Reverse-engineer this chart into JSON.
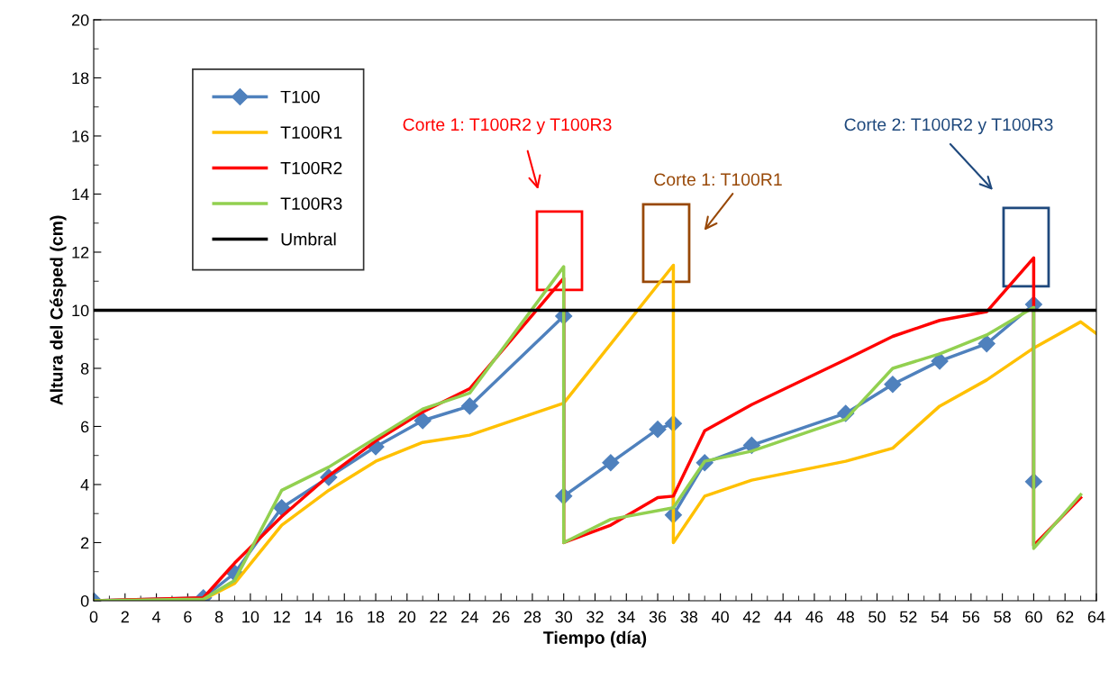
{
  "chart_data": {
    "type": "line",
    "xlabel": "Tiempo (día)",
    "ylabel": "Altura del Césped (cm)",
    "xlim": [
      0,
      64
    ],
    "xticks": [
      0,
      2,
      4,
      6,
      8,
      10,
      12,
      14,
      16,
      18,
      20,
      22,
      24,
      26,
      28,
      30,
      32,
      34,
      36,
      38,
      40,
      42,
      44,
      46,
      48,
      50,
      52,
      54,
      56,
      58,
      60,
      62,
      64
    ],
    "ylim": [
      0,
      20
    ],
    "yticks": [
      0,
      2,
      4,
      6,
      8,
      10,
      12,
      14,
      16,
      18,
      20
    ],
    "grid": false,
    "legend": "top left",
    "series": [
      {
        "name": "T100",
        "color": "#4f81bd",
        "marker": "diamond",
        "x": [
          0,
          7,
          9,
          12,
          15,
          18,
          21,
          24,
          30,
          30,
          33,
          36,
          37,
          37,
          39,
          42,
          48,
          51,
          54,
          57,
          60,
          60
        ],
        "values": [
          0,
          0.1,
          0.95,
          3.2,
          4.25,
          5.3,
          6.2,
          6.7,
          9.8,
          3.6,
          4.75,
          5.9,
          6.1,
          2.95,
          4.75,
          5.35,
          6.45,
          7.45,
          8.25,
          8.85,
          10.2,
          4.1
        ]
      },
      {
        "name": "T100R1",
        "color": "#ffc000",
        "x": [
          0,
          7,
          9,
          12,
          15,
          18,
          21,
          24,
          30,
          37,
          37,
          39,
          42,
          48,
          51,
          54,
          57,
          60,
          63,
          64
        ],
        "values": [
          0,
          0.05,
          0.6,
          2.6,
          3.8,
          4.8,
          5.45,
          5.7,
          6.8,
          11.55,
          2.0,
          3.6,
          4.15,
          4.8,
          5.25,
          6.7,
          7.6,
          8.7,
          9.6,
          9.2
        ]
      },
      {
        "name": "T100R2",
        "color": "#ff0000",
        "x": [
          0,
          7,
          9,
          12,
          15,
          18,
          21,
          24,
          30,
          30,
          33,
          36,
          37,
          39,
          42,
          48,
          51,
          54,
          57,
          60,
          60,
          63
        ],
        "values": [
          0,
          0.1,
          1.3,
          2.9,
          4.3,
          5.5,
          6.5,
          7.3,
          11.1,
          2.0,
          2.6,
          3.55,
          3.6,
          5.85,
          6.75,
          8.3,
          9.1,
          9.65,
          9.95,
          11.8,
          1.9,
          3.55
        ]
      },
      {
        "name": "T100R3",
        "color": "#92d050",
        "x": [
          0,
          7,
          9,
          12,
          15,
          18,
          21,
          24,
          30,
          30,
          33,
          37,
          39,
          42,
          48,
          51,
          54,
          57,
          60,
          60,
          63
        ],
        "values": [
          0,
          0.05,
          0.7,
          3.8,
          4.6,
          5.6,
          6.6,
          7.15,
          11.5,
          2.0,
          2.8,
          3.2,
          4.8,
          5.15,
          6.25,
          8.0,
          8.5,
          9.15,
          10.1,
          1.8,
          3.65
        ]
      },
      {
        "name": "Umbral",
        "color": "#000000",
        "x": [
          0,
          64
        ],
        "values": [
          10,
          10
        ]
      }
    ],
    "annotations": [
      "Corte 1: T100R2 y T100R3",
      "Corte 1: T100R1",
      "Corte 2: T100R2 y T100R3"
    ]
  }
}
